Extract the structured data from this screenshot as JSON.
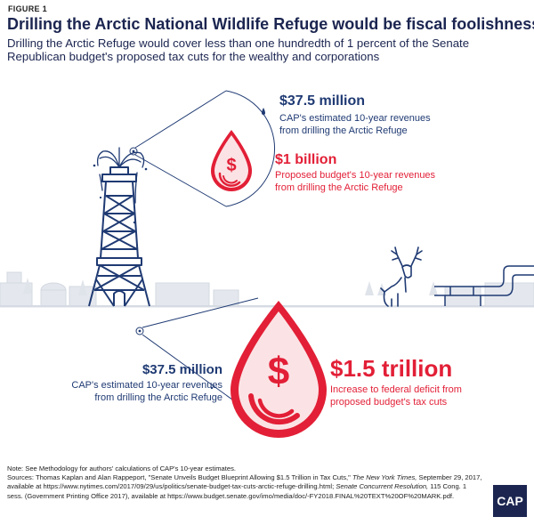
{
  "figure_label": "FIGURE 1",
  "title": "Drilling the Arctic National Wildlife Refuge would be fiscal foolishness",
  "subtitle": "Drilling the Arctic Refuge would cover less than one hundredth of 1 percent of the Senate Republican budget's proposed tax cuts for the wealthy and corporations",
  "top_callout": {
    "cap_amount": "$37.5 million",
    "cap_description": "CAP's estimated 10-year revenues from drilling the Arctic Refuge",
    "budget_amount": "$1 billion",
    "budget_description": "Proposed budget's 10-year revenues from drilling the Arctic Refuge"
  },
  "bottom_callout": {
    "cap_amount": "$37.5 million",
    "cap_description": "CAP's estimated 10-year revenues from drilling the Arctic Refuge",
    "deficit_amount": "$1.5 trillion",
    "deficit_description": "Increase to federal deficit from proposed budget's tax cuts"
  },
  "notes": {
    "note": "Note: See Methodology for authors' calculations of CAP's 10-year estimates.",
    "sources_1": "Sources: Thomas Kaplan and Alan Rappeport, \"Senate Unveils Budget Blueprint Allowing $1.5 Trillion in Tax Cuts,\"",
    "sources_1_pub": "The New York Times,",
    "sources_2": "September 29, 2017, available at https://www.nytimes.com/2017/09/29/us/politics/senate-budget-tax-cuts-arctic-refuge-drilling.html;",
    "sources_2_doc": "Senate Concurrent Resolution,",
    "sources_3": "115 Cong. 1 sess. (Government Printing Office 2017), available at https://www.budget.senate.gov/imo/media/doc/-FY2018.FINAL%20TEXT%20OF%20MARK.pdf."
  },
  "logo_text": "CAP",
  "colors": {
    "navy": "#1f3a73",
    "red": "#e21f36",
    "light_red_fill": "#fbe3e5",
    "background_gray": "#dde1e8"
  },
  "icons": [
    "oil-rig-icon",
    "drop-icon",
    "dollar-icon",
    "caribou-icon",
    "pipeline-icon",
    "tree-icon"
  ]
}
